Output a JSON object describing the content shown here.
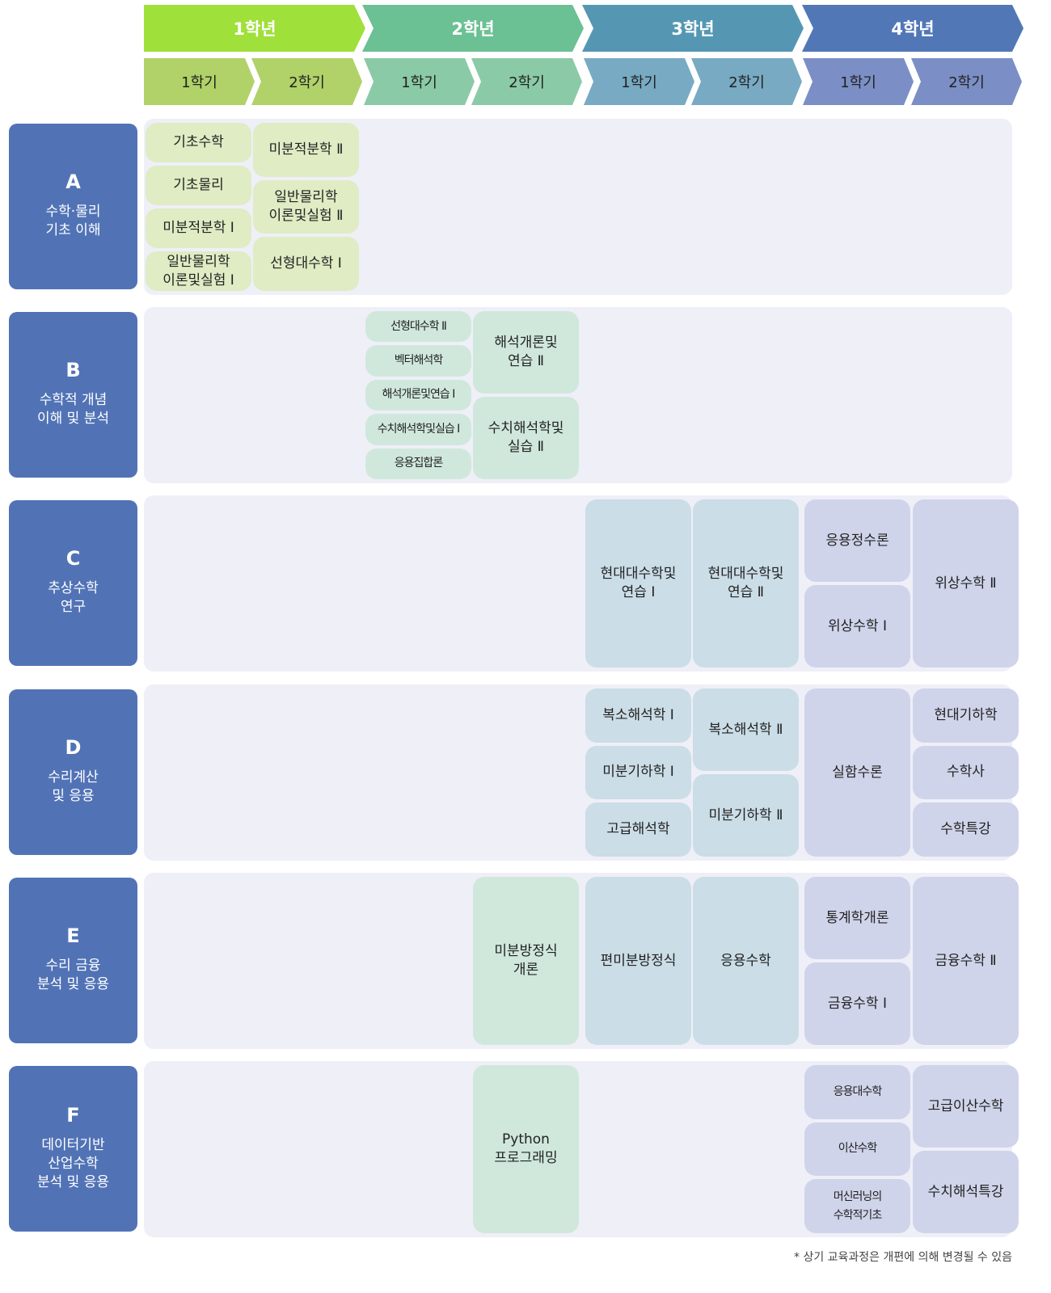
{
  "years": [
    {
      "label": "1학년",
      "color": "#9fe03a",
      "semester_color": "#b0d268",
      "course_color": "#dfecc4"
    },
    {
      "label": "2학년",
      "color": "#6bc094",
      "semester_color": "#8bcaa6",
      "course_color": "#d0e8dc"
    },
    {
      "label": "3학년",
      "color": "#5597b3",
      "semester_color": "#78aac3",
      "course_color": "#cbdde6"
    },
    {
      "label": "4학년",
      "color": "#5177b7",
      "semester_color": "#7b8fc6",
      "course_color": "#d0d4ea"
    }
  ],
  "semesters": [
    "1학기",
    "2학기"
  ],
  "label_color": "#5173b6",
  "tracks": [
    {
      "code": "A",
      "name": [
        "수학·물리",
        "기초 이해"
      ],
      "columns": [
        {
          "year": 1,
          "semester": 1,
          "courses": [
            "기초수학",
            "기초물리",
            "미분적분학 Ⅰ",
            "일반물리학\n이론및실험 Ⅰ"
          ]
        },
        {
          "year": 1,
          "semester": 2,
          "courses": [
            "미분적분학 Ⅱ",
            "일반물리학\n이론및실험 Ⅱ",
            "선형대수학 Ⅰ"
          ]
        }
      ]
    },
    {
      "code": "B",
      "name": [
        "수학적 개념",
        "이해 및 분석"
      ],
      "columns": [
        {
          "year": 2,
          "semester": 1,
          "small": true,
          "courses": [
            "선형대수학 Ⅱ",
            "벡터해석학",
            "해석개론및연습 Ⅰ",
            "수치해석학및실습 Ⅰ",
            "응용집합론"
          ]
        },
        {
          "year": 2,
          "semester": 2,
          "courses": [
            "해석개론및\n연습 Ⅱ",
            "수치해석학및\n실습 Ⅱ"
          ]
        }
      ]
    },
    {
      "code": "C",
      "name": [
        "추상수학",
        "연구"
      ],
      "columns": [
        {
          "year": 3,
          "semester": 1,
          "courses": [
            "현대대수학및\n연습 Ⅰ"
          ]
        },
        {
          "year": 3,
          "semester": 2,
          "courses": [
            "현대대수학및\n연습 Ⅱ"
          ]
        },
        {
          "year": 4,
          "semester": 1,
          "courses": [
            "응용정수론",
            "위상수학 Ⅰ"
          ]
        },
        {
          "year": 4,
          "semester": 2,
          "courses": [
            "위상수학 Ⅱ"
          ]
        }
      ]
    },
    {
      "code": "D",
      "name": [
        "수리계산",
        "및 응용"
      ],
      "columns": [
        {
          "year": 3,
          "semester": 1,
          "courses": [
            "복소해석학 Ⅰ",
            "미분기하학 Ⅰ",
            "고급해석학"
          ]
        },
        {
          "year": 3,
          "semester": 2,
          "courses": [
            "복소해석학 Ⅱ",
            "미분기하학 Ⅱ"
          ]
        },
        {
          "year": 4,
          "semester": 1,
          "courses": [
            "실함수론"
          ]
        },
        {
          "year": 4,
          "semester": 2,
          "courses": [
            "현대기하학",
            "수학사",
            "수학특강"
          ]
        }
      ]
    },
    {
      "code": "E",
      "name": [
        "수리 금융",
        "분석 및 응용"
      ],
      "columns": [
        {
          "year": 2,
          "semester": 2,
          "courses": [
            "미분방정식\n개론"
          ]
        },
        {
          "year": 3,
          "semester": 1,
          "courses": [
            "편미분방정식"
          ]
        },
        {
          "year": 3,
          "semester": 2,
          "courses": [
            "응용수학"
          ]
        },
        {
          "year": 4,
          "semester": 1,
          "courses": [
            "통계학개론",
            "금융수학 Ⅰ"
          ]
        },
        {
          "year": 4,
          "semester": 2,
          "courses": [
            "금융수학 Ⅱ"
          ]
        }
      ]
    },
    {
      "code": "F",
      "name": [
        "데이터기반",
        "산업수학",
        "분석 및 응용"
      ],
      "columns": [
        {
          "year": 2,
          "semester": 2,
          "courses": [
            "Python\n프로그래밍"
          ]
        },
        {
          "year": 4,
          "semester": 1,
          "small": true,
          "courses": [
            "응용대수학",
            "이산수학",
            "머신러닝의\n수학적기초"
          ]
        },
        {
          "year": 4,
          "semester": 2,
          "courses": [
            "고급이산수학",
            "수치해석특강"
          ]
        }
      ]
    }
  ],
  "footnote": "* 상기 교육과정은 개편에 의해 변경될 수 있음"
}
